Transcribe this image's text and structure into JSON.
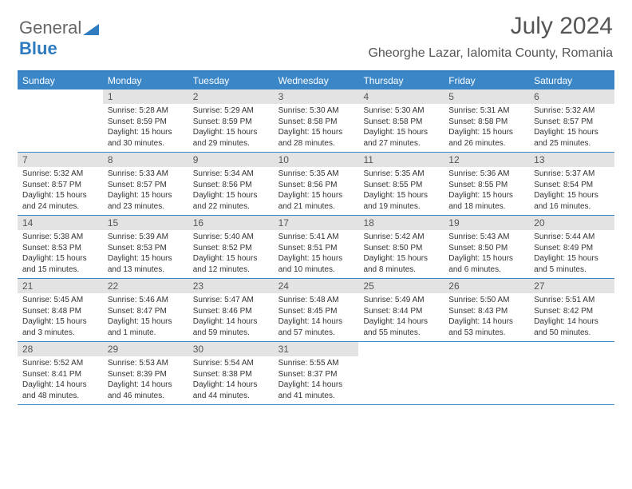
{
  "logo": {
    "part1": "General",
    "part2": "Blue"
  },
  "title": "July 2024",
  "location": "Gheorghe Lazar, Ialomita County, Romania",
  "colors": {
    "accent": "#3b86c7",
    "border": "#2f7bbf",
    "daynum_bg": "#e3e3e3",
    "text": "#555555"
  },
  "day_headers": [
    "Sunday",
    "Monday",
    "Tuesday",
    "Wednesday",
    "Thursday",
    "Friday",
    "Saturday"
  ],
  "weeks": [
    [
      {
        "n": "",
        "sr": "",
        "ss": "",
        "dl": ""
      },
      {
        "n": "1",
        "sr": "Sunrise: 5:28 AM",
        "ss": "Sunset: 8:59 PM",
        "dl": "Daylight: 15 hours and 30 minutes."
      },
      {
        "n": "2",
        "sr": "Sunrise: 5:29 AM",
        "ss": "Sunset: 8:59 PM",
        "dl": "Daylight: 15 hours and 29 minutes."
      },
      {
        "n": "3",
        "sr": "Sunrise: 5:30 AM",
        "ss": "Sunset: 8:58 PM",
        "dl": "Daylight: 15 hours and 28 minutes."
      },
      {
        "n": "4",
        "sr": "Sunrise: 5:30 AM",
        "ss": "Sunset: 8:58 PM",
        "dl": "Daylight: 15 hours and 27 minutes."
      },
      {
        "n": "5",
        "sr": "Sunrise: 5:31 AM",
        "ss": "Sunset: 8:58 PM",
        "dl": "Daylight: 15 hours and 26 minutes."
      },
      {
        "n": "6",
        "sr": "Sunrise: 5:32 AM",
        "ss": "Sunset: 8:57 PM",
        "dl": "Daylight: 15 hours and 25 minutes."
      }
    ],
    [
      {
        "n": "7",
        "sr": "Sunrise: 5:32 AM",
        "ss": "Sunset: 8:57 PM",
        "dl": "Daylight: 15 hours and 24 minutes."
      },
      {
        "n": "8",
        "sr": "Sunrise: 5:33 AM",
        "ss": "Sunset: 8:57 PM",
        "dl": "Daylight: 15 hours and 23 minutes."
      },
      {
        "n": "9",
        "sr": "Sunrise: 5:34 AM",
        "ss": "Sunset: 8:56 PM",
        "dl": "Daylight: 15 hours and 22 minutes."
      },
      {
        "n": "10",
        "sr": "Sunrise: 5:35 AM",
        "ss": "Sunset: 8:56 PM",
        "dl": "Daylight: 15 hours and 21 minutes."
      },
      {
        "n": "11",
        "sr": "Sunrise: 5:35 AM",
        "ss": "Sunset: 8:55 PM",
        "dl": "Daylight: 15 hours and 19 minutes."
      },
      {
        "n": "12",
        "sr": "Sunrise: 5:36 AM",
        "ss": "Sunset: 8:55 PM",
        "dl": "Daylight: 15 hours and 18 minutes."
      },
      {
        "n": "13",
        "sr": "Sunrise: 5:37 AM",
        "ss": "Sunset: 8:54 PM",
        "dl": "Daylight: 15 hours and 16 minutes."
      }
    ],
    [
      {
        "n": "14",
        "sr": "Sunrise: 5:38 AM",
        "ss": "Sunset: 8:53 PM",
        "dl": "Daylight: 15 hours and 15 minutes."
      },
      {
        "n": "15",
        "sr": "Sunrise: 5:39 AM",
        "ss": "Sunset: 8:53 PM",
        "dl": "Daylight: 15 hours and 13 minutes."
      },
      {
        "n": "16",
        "sr": "Sunrise: 5:40 AM",
        "ss": "Sunset: 8:52 PM",
        "dl": "Daylight: 15 hours and 12 minutes."
      },
      {
        "n": "17",
        "sr": "Sunrise: 5:41 AM",
        "ss": "Sunset: 8:51 PM",
        "dl": "Daylight: 15 hours and 10 minutes."
      },
      {
        "n": "18",
        "sr": "Sunrise: 5:42 AM",
        "ss": "Sunset: 8:50 PM",
        "dl": "Daylight: 15 hours and 8 minutes."
      },
      {
        "n": "19",
        "sr": "Sunrise: 5:43 AM",
        "ss": "Sunset: 8:50 PM",
        "dl": "Daylight: 15 hours and 6 minutes."
      },
      {
        "n": "20",
        "sr": "Sunrise: 5:44 AM",
        "ss": "Sunset: 8:49 PM",
        "dl": "Daylight: 15 hours and 5 minutes."
      }
    ],
    [
      {
        "n": "21",
        "sr": "Sunrise: 5:45 AM",
        "ss": "Sunset: 8:48 PM",
        "dl": "Daylight: 15 hours and 3 minutes."
      },
      {
        "n": "22",
        "sr": "Sunrise: 5:46 AM",
        "ss": "Sunset: 8:47 PM",
        "dl": "Daylight: 15 hours and 1 minute."
      },
      {
        "n": "23",
        "sr": "Sunrise: 5:47 AM",
        "ss": "Sunset: 8:46 PM",
        "dl": "Daylight: 14 hours and 59 minutes."
      },
      {
        "n": "24",
        "sr": "Sunrise: 5:48 AM",
        "ss": "Sunset: 8:45 PM",
        "dl": "Daylight: 14 hours and 57 minutes."
      },
      {
        "n": "25",
        "sr": "Sunrise: 5:49 AM",
        "ss": "Sunset: 8:44 PM",
        "dl": "Daylight: 14 hours and 55 minutes."
      },
      {
        "n": "26",
        "sr": "Sunrise: 5:50 AM",
        "ss": "Sunset: 8:43 PM",
        "dl": "Daylight: 14 hours and 53 minutes."
      },
      {
        "n": "27",
        "sr": "Sunrise: 5:51 AM",
        "ss": "Sunset: 8:42 PM",
        "dl": "Daylight: 14 hours and 50 minutes."
      }
    ],
    [
      {
        "n": "28",
        "sr": "Sunrise: 5:52 AM",
        "ss": "Sunset: 8:41 PM",
        "dl": "Daylight: 14 hours and 48 minutes."
      },
      {
        "n": "29",
        "sr": "Sunrise: 5:53 AM",
        "ss": "Sunset: 8:39 PM",
        "dl": "Daylight: 14 hours and 46 minutes."
      },
      {
        "n": "30",
        "sr": "Sunrise: 5:54 AM",
        "ss": "Sunset: 8:38 PM",
        "dl": "Daylight: 14 hours and 44 minutes."
      },
      {
        "n": "31",
        "sr": "Sunrise: 5:55 AM",
        "ss": "Sunset: 8:37 PM",
        "dl": "Daylight: 14 hours and 41 minutes."
      },
      {
        "n": "",
        "sr": "",
        "ss": "",
        "dl": ""
      },
      {
        "n": "",
        "sr": "",
        "ss": "",
        "dl": ""
      },
      {
        "n": "",
        "sr": "",
        "ss": "",
        "dl": ""
      }
    ]
  ]
}
